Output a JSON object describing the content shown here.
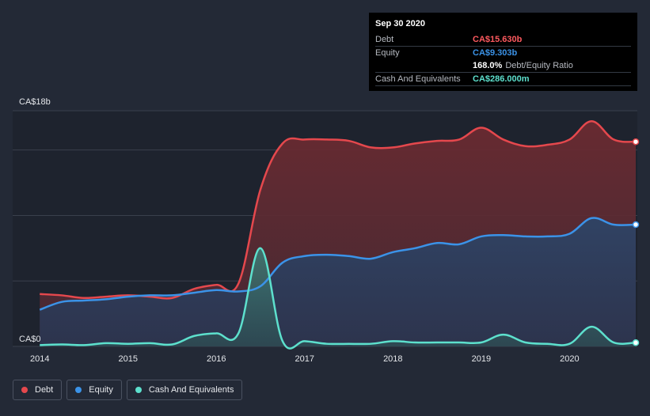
{
  "chart_data": {
    "type": "area",
    "title": "",
    "x": [
      2014,
      2014.25,
      2014.5,
      2014.75,
      2015,
      2015.25,
      2015.5,
      2015.75,
      2016,
      2016.25,
      2016.5,
      2016.75,
      2017,
      2017.25,
      2017.5,
      2017.75,
      2018,
      2018.25,
      2018.5,
      2018.75,
      2019,
      2019.25,
      2019.5,
      2019.75,
      2020,
      2020.25,
      2020.5,
      2020.75
    ],
    "series": [
      {
        "name": "Debt",
        "color": "#e5484d",
        "values": [
          4.0,
          3.9,
          3.7,
          3.8,
          3.9,
          3.8,
          3.7,
          4.4,
          4.7,
          4.8,
          12.0,
          15.5,
          15.8,
          15.8,
          15.7,
          15.2,
          15.2,
          15.5,
          15.7,
          15.8,
          16.7,
          15.8,
          15.3,
          15.4,
          15.8,
          17.2,
          15.8,
          15.63
        ]
      },
      {
        "name": "Equity",
        "color": "#3b93e8",
        "values": [
          2.8,
          3.4,
          3.5,
          3.6,
          3.8,
          3.9,
          3.9,
          4.1,
          4.3,
          4.2,
          4.6,
          6.4,
          6.9,
          7.0,
          6.9,
          6.7,
          7.2,
          7.5,
          7.9,
          7.8,
          8.4,
          8.5,
          8.4,
          8.4,
          8.6,
          9.8,
          9.3,
          9.303
        ]
      },
      {
        "name": "Cash And Equivalents",
        "color": "#5de0cd",
        "values": [
          0.1,
          0.15,
          0.1,
          0.25,
          0.2,
          0.25,
          0.15,
          0.8,
          1.0,
          1.0,
          7.5,
          0.4,
          0.4,
          0.2,
          0.2,
          0.2,
          0.4,
          0.3,
          0.3,
          0.3,
          0.3,
          0.9,
          0.3,
          0.2,
          0.2,
          1.5,
          0.3,
          0.286
        ]
      }
    ],
    "xlabel": "",
    "ylabel": "",
    "ylim": [
      0,
      18
    ],
    "xlim": [
      2013.98,
      2020.75
    ],
    "y_tick_labels": [
      "CA$18b",
      "CA$0"
    ],
    "x_ticks": [
      2014,
      2015,
      2016,
      2017,
      2018,
      2019,
      2020
    ],
    "x_tick_labels": [
      "2014",
      "2015",
      "2016",
      "2017",
      "2018",
      "2019",
      "2020"
    ],
    "grid": true,
    "legend": "bottom-left"
  },
  "tooltip": {
    "date": "Sep 30 2020",
    "debt_label": "Debt",
    "debt_value": "CA$15.630b",
    "debt_color": "#ff5a5f",
    "equity_label": "Equity",
    "equity_value": "CA$9.303b",
    "equity_color": "#3b93e8",
    "ratio_value": "168.0%",
    "ratio_label": "Debt/Equity Ratio",
    "cash_label": "Cash And Equivalents",
    "cash_value": "CA$286.000m",
    "cash_color": "#5de0cd"
  },
  "legend": [
    {
      "label": "Debt",
      "color": "#e5484d"
    },
    {
      "label": "Equity",
      "color": "#3b93e8"
    },
    {
      "label": "Cash And Equivalents",
      "color": "#5de0cd"
    }
  ]
}
